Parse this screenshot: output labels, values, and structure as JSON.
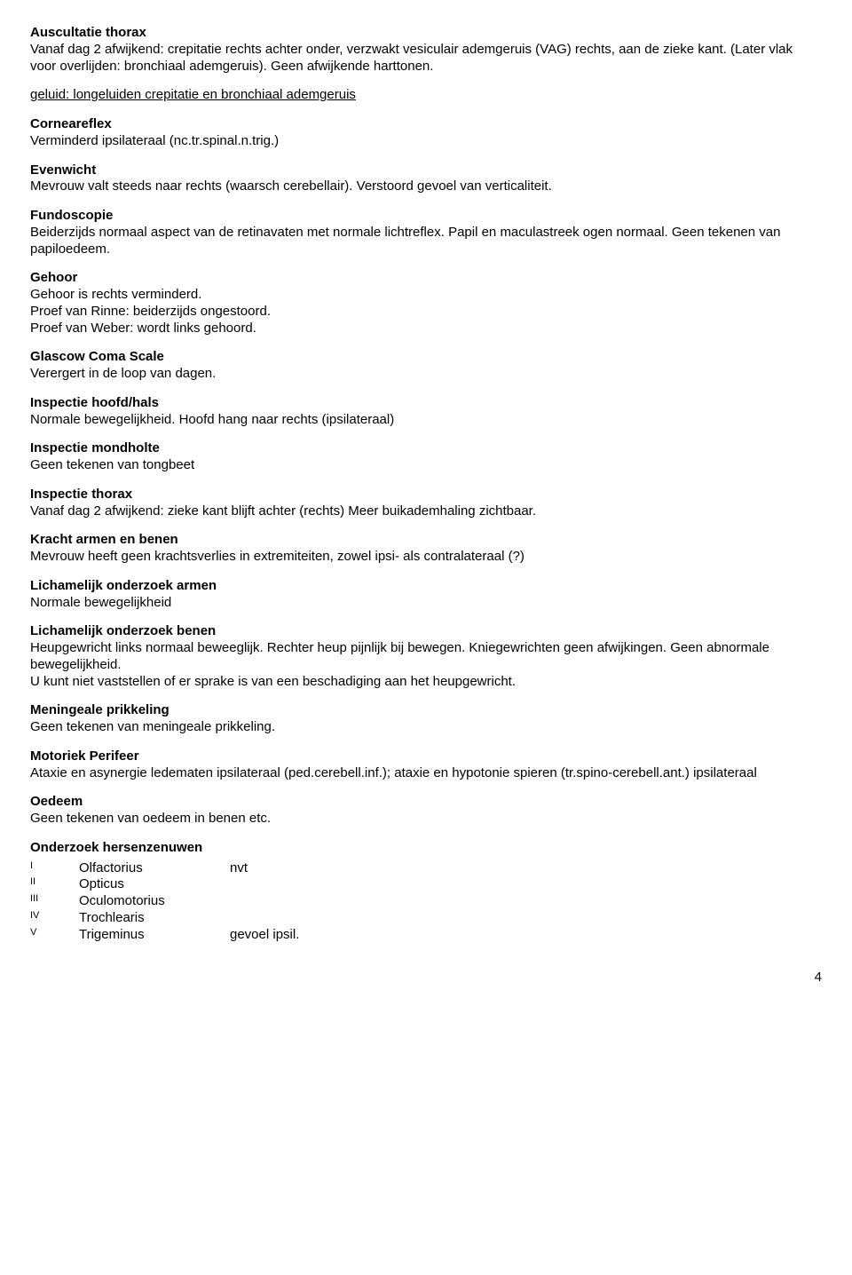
{
  "sections": {
    "auscultatie": {
      "title": "Auscultatie thorax",
      "body": "Vanaf dag 2 afwijkend: crepitatie rechts achter onder, verzwakt vesiculair ademgeruis (VAG) rechts, aan de zieke kant. (Later vlak voor overlijden: bronchiaal ademgeruis). Geen afwijkende harttonen."
    },
    "geluid": {
      "link": "geluid: longeluiden crepitatie en bronchiaal ademgeruis"
    },
    "corneareflex": {
      "title": "Corneareflex",
      "body": "Verminderd ipsilateraal (nc.tr.spinal.n.trig.)"
    },
    "evenwicht": {
      "title": "Evenwicht",
      "body": "Mevrouw valt steeds naar rechts (waarsch cerebellair). Verstoord gevoel van verticaliteit."
    },
    "fundoscopie": {
      "title": "Fundoscopie",
      "body": "Beiderzijds normaal aspect van de retinavaten met normale lichtreflex. Papil en maculastreek ogen normaal. Geen tekenen van papiloedeem."
    },
    "gehoor": {
      "title": "Gehoor",
      "l1": "Gehoor is rechts verminderd.",
      "l2": "Proef van Rinne: beiderzijds ongestoord.",
      "l3": "Proef van Weber: wordt links gehoord."
    },
    "glascow": {
      "title": "Glascow Coma Scale",
      "body": "Verergert in de loop van dagen."
    },
    "inspectie_hoofd": {
      "title": "Inspectie hoofd/hals",
      "body": "Normale bewegelijkheid. Hoofd hang naar rechts (ipsilateraal)"
    },
    "inspectie_mond": {
      "title": "Inspectie mondholte",
      "body": "Geen tekenen van tongbeet"
    },
    "inspectie_thorax": {
      "title": "Inspectie thorax",
      "body": "Vanaf dag 2 afwijkend: zieke kant blijft achter (rechts) Meer buikademhaling zichtbaar."
    },
    "kracht": {
      "title": "Kracht armen en benen",
      "body": "Mevrouw heeft geen krachtsverlies in extremiteiten, zowel ipsi- als contralateraal (?)"
    },
    "lich_armen": {
      "title": "Lichamelijk onderzoek armen",
      "body": "Normale bewegelijkheid"
    },
    "lich_benen": {
      "title": "Lichamelijk onderzoek benen",
      "l1": "Heupgewricht links normaal beweeglijk. Rechter heup pijnlijk bij bewegen. Kniegewrichten geen afwijkingen. Geen abnormale bewegelijkheid.",
      "l2": "U kunt niet vaststellen of er sprake is van een beschadiging aan het heupgewricht."
    },
    "meningeale": {
      "title": "Meningeale prikkeling",
      "body": "Geen tekenen van meningeale prikkeling."
    },
    "motoriek": {
      "title": "Motoriek Perifeer",
      "body": "Ataxie en asynergie ledematen ipsilateraal (ped.cerebell.inf.); ataxie en hypotonie spieren (tr.spino-cerebell.ant.) ipsilateraal"
    },
    "oedeem": {
      "title": "Oedeem",
      "body": "Geen tekenen van oedeem in benen etc."
    },
    "hersenzenuwen": {
      "title": "Onderzoek hersenzenuwen"
    }
  },
  "nerves": [
    {
      "num": "I",
      "name": "Olfactorius",
      "note": "nvt"
    },
    {
      "num": "II",
      "name": "Opticus",
      "note": ""
    },
    {
      "num": "III",
      "name": "Oculomotorius",
      "note": ""
    },
    {
      "num": "IV",
      "name": "Trochlearis",
      "note": ""
    },
    {
      "num": "V",
      "name": "Trigeminus",
      "note": "gevoel ipsil."
    }
  ],
  "page_number": "4"
}
